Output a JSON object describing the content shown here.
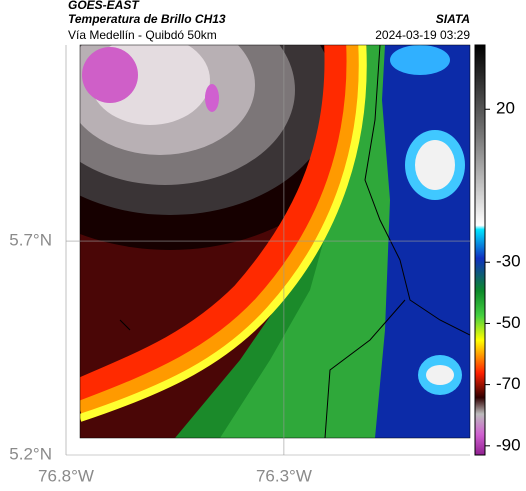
{
  "header": {
    "source": "GOES-EAST",
    "title": "Temperatura de Brillo CH13",
    "org": "SIATA",
    "region": "Vía Medellín - Quibdó 50km",
    "datetime": "2024-03-19 03:29"
  },
  "map": {
    "lon_lim": [
      -76.8,
      -75.873
    ],
    "lat_lim": [
      5.2,
      6.158
    ],
    "lon_ticks": [
      {
        "value": -76.8,
        "label": "76.8°W"
      },
      {
        "value": -76.3,
        "label": "76.3°W"
      }
    ],
    "lat_ticks": [
      {
        "value": 5.7,
        "label": "5.7°N"
      },
      {
        "value": 5.2,
        "label": "5.2°N"
      }
    ]
  },
  "colorbar": {
    "lim": [
      -93,
      41
    ],
    "ticks": [
      20,
      -30,
      -50,
      -70,
      -90
    ]
  }
}
